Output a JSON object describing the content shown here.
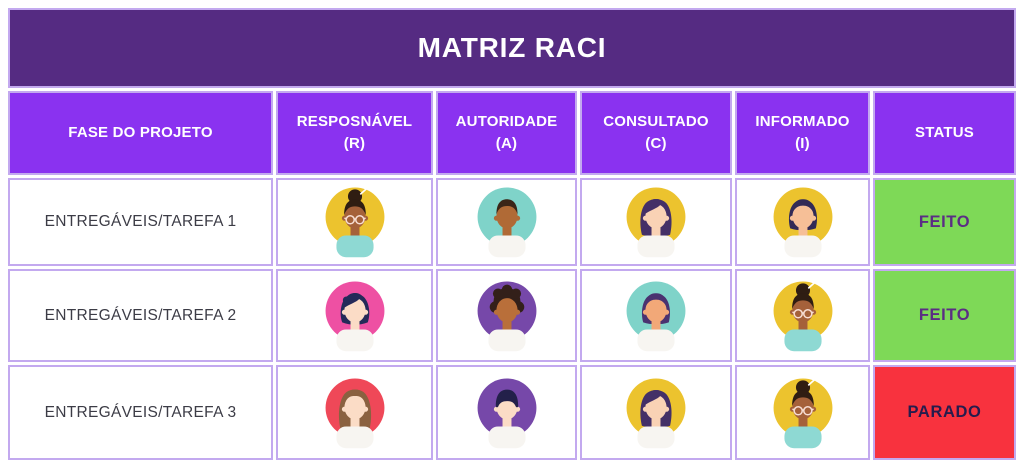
{
  "title": "MATRIZ RACI",
  "columns": [
    {
      "label": "FASE DO PROJETO",
      "sub": ""
    },
    {
      "label": "RESPOSNÁVEL",
      "sub": "(R)"
    },
    {
      "label": "AUTORIDADE",
      "sub": "(A)"
    },
    {
      "label": "CONSULTADO",
      "sub": "(C)"
    },
    {
      "label": "INFORMADO",
      "sub": "(I)"
    },
    {
      "label": "STATUS",
      "sub": ""
    }
  ],
  "rows": [
    {
      "phase": "ENTREGÁVEIS/TAREFA 1",
      "avatars": [
        {
          "name": "woman-bun-glasses-avatar",
          "style": "bun",
          "bg": "#ecc32e",
          "skin": "#a5613a",
          "hair": "#2f1d12",
          "shirt": "#8ed9d3",
          "glasses": true
        },
        {
          "name": "man-short-hair-avatar",
          "style": "short",
          "bg": "#7fd3c9",
          "skin": "#b06a36",
          "hair": "#3a2517",
          "shirt": "#f7f5f1",
          "glasses": false
        },
        {
          "name": "woman-side-part-avatar",
          "style": "sidepart",
          "bg": "#ecc32e",
          "skin": "#f9d2b5",
          "hair": "#443067",
          "shirt": "#f7f5f1",
          "glasses": false
        },
        {
          "name": "person-bob-hair-avatar",
          "style": "bob",
          "bg": "#ecc32e",
          "skin": "#f6bf97",
          "hair": "#322a56",
          "shirt": "#f7f5f1",
          "glasses": false
        }
      ],
      "status": {
        "label": "FEITO",
        "bg": "#7ed957",
        "color": "#5b2d84"
      }
    },
    {
      "phase": "ENTREGÁVEIS/TAREFA 2",
      "avatars": [
        {
          "name": "woman-wavy-hair-avatar",
          "style": "wavy",
          "bg": "#ee50a3",
          "skin": "#fbdcc6",
          "hair": "#252a59",
          "shirt": "#f7f5f1",
          "glasses": false
        },
        {
          "name": "person-afro-hair-avatar",
          "style": "afro",
          "bg": "#7648a9",
          "skin": "#b96f3a",
          "hair": "#33201a",
          "shirt": "#f7f5f1",
          "glasses": false
        },
        {
          "name": "woman-bob-teal-avatar",
          "style": "bob",
          "bg": "#7fd3c9",
          "skin": "#f2a878",
          "hair": "#4a3270",
          "shirt": "#f7f5f1",
          "glasses": false
        },
        {
          "name": "woman-bun-glasses-avatar",
          "style": "bun",
          "bg": "#ecc32e",
          "skin": "#a5613a",
          "hair": "#2f1d12",
          "shirt": "#8ed9d3",
          "glasses": true
        }
      ],
      "status": {
        "label": "FEITO",
        "bg": "#7ed957",
        "color": "#5b2d84"
      }
    },
    {
      "phase": "ENTREGÁVEIS/TAREFA 3",
      "avatars": [
        {
          "name": "woman-brown-hair-avatar",
          "style": "long",
          "bg": "#ef4858",
          "skin": "#fbdcc6",
          "hair": "#8a6140",
          "shirt": "#f7f5f1",
          "glasses": false
        },
        {
          "name": "person-bowl-cut-avatar",
          "style": "bowl",
          "bg": "#7648a9",
          "skin": "#fbdcc6",
          "hair": "#23204a",
          "shirt": "#f7f5f1",
          "glasses": false
        },
        {
          "name": "woman-side-part-avatar",
          "style": "sidepart",
          "bg": "#ecc32e",
          "skin": "#f9d2b5",
          "hair": "#443067",
          "shirt": "#f7f5f1",
          "glasses": false
        },
        {
          "name": "woman-bun-glasses-avatar",
          "style": "bun",
          "bg": "#ecc32e",
          "skin": "#a5613a",
          "hair": "#2f1d12",
          "shirt": "#8ed9d3",
          "glasses": true
        }
      ],
      "status": {
        "label": "PARADO",
        "bg": "#f8323e",
        "color": "#261c4d"
      }
    }
  ],
  "colors": {
    "title_bg": "#552b82",
    "header_bg": "#8a32f0",
    "border": "#c3a9ef",
    "phase_text": "#3c3c46"
  }
}
